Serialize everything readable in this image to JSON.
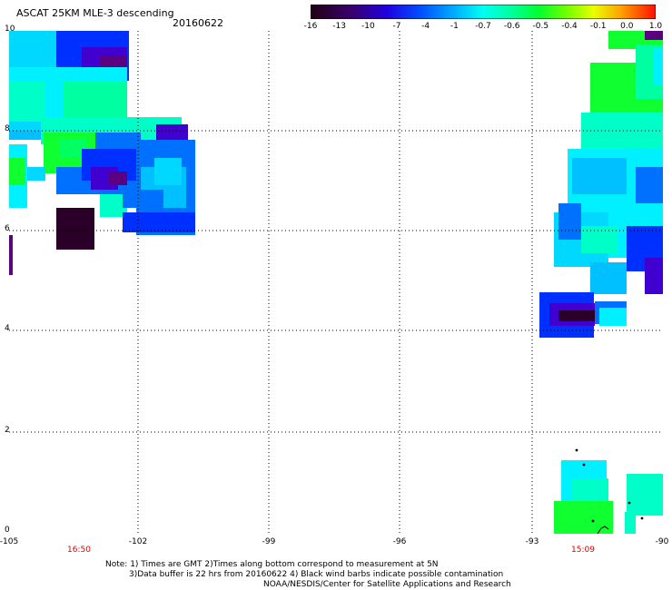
{
  "header": {
    "title": "ASCAT 25KM MLE-3 descending",
    "date": "20160622"
  },
  "colorbar": {
    "labels": [
      "-16",
      "-13",
      "-10",
      "-7",
      "-4",
      "-1",
      "-0.7",
      "-0.6",
      "-0.5",
      "-0.4",
      "-0.1",
      "0.0",
      "1.0"
    ],
    "colors": [
      "#2a0020",
      "#4a0080",
      "#3000d0",
      "#0040ff",
      "#0090ff",
      "#00e0ff",
      "#00ffc0",
      "#00ff40",
      "#40ff00",
      "#c0ff00",
      "#ffe000",
      "#ff8000",
      "#ff2000"
    ]
  },
  "axes": {
    "y_labels": [
      "10",
      "8",
      "6",
      "4",
      "2",
      "0"
    ],
    "x_labels": [
      "-105",
      "-102",
      "-99",
      "-96",
      "-93",
      "-90"
    ]
  },
  "times": [
    "16:50",
    "15:09"
  ],
  "notes": {
    "line1": "Note: 1) Times are GMT 2)Times along bottom correspond to measurement at 5N",
    "line2": "3)Data buffer is 22 hrs from 20160622 4) Black wind barbs indicate possible contamination",
    "line3": "NOAA/NESDIS/Center for Satellite Applications and Research"
  }
}
